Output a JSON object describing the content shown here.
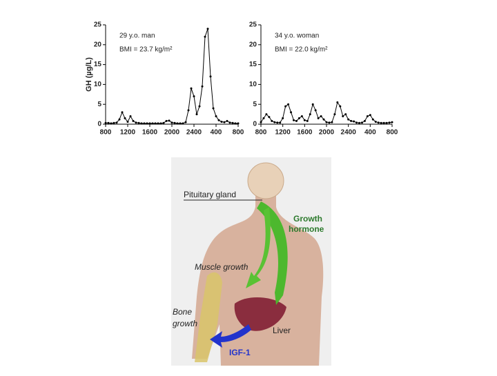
{
  "chart_data": [
    {
      "type": "line",
      "annotations": [
        "29 y.o. man",
        "BMI = 23.7 kg/m²"
      ],
      "y_label": "GH (µg/L)",
      "x": [
        0,
        0.5,
        1,
        1.5,
        2,
        2.5,
        3,
        3.5,
        4,
        4.5,
        5,
        5.5,
        6,
        6.5,
        7,
        7.5,
        8,
        8.5,
        9,
        9.5,
        10,
        10.5,
        11,
        11.5,
        12,
        12.5,
        13,
        13.5,
        14,
        14.5,
        15,
        15.5,
        16,
        16.5,
        17,
        17.5,
        18,
        18.5,
        19,
        19.5,
        20,
        20.5,
        21,
        21.5,
        22,
        22.5,
        23,
        23.5,
        24
      ],
      "values": [
        0.3,
        0.3,
        0.2,
        0.3,
        0.4,
        1.2,
        3.0,
        1.5,
        0.6,
        2.0,
        0.8,
        0.4,
        0.3,
        0.2,
        0.2,
        0.2,
        0.2,
        0.2,
        0.2,
        0.2,
        0.2,
        0.3,
        0.8,
        0.9,
        0.4,
        0.3,
        0.2,
        0.2,
        0.2,
        0.5,
        3.5,
        9.0,
        7.0,
        2.5,
        4.5,
        9.5,
        22.0,
        24.0,
        12.0,
        4.0,
        2.0,
        1.0,
        0.6,
        0.5,
        0.8,
        0.4,
        0.3,
        0.2,
        0.2
      ],
      "color": "#000000",
      "xlim": [
        0,
        24
      ],
      "xticks": [
        {
          "value": 0,
          "label": "800"
        },
        {
          "value": 4,
          "label": "1200"
        },
        {
          "value": 8,
          "label": "1600"
        },
        {
          "value": 12,
          "label": "2000"
        },
        {
          "value": 16,
          "label": "2400"
        },
        {
          "value": 20,
          "label": "400"
        },
        {
          "value": 24,
          "label": "800"
        }
      ],
      "ylim": [
        0,
        25
      ],
      "yticks": [
        0,
        5,
        10,
        15,
        20,
        25
      ]
    },
    {
      "type": "line",
      "annotations": [
        "34 y.o. woman",
        "BMI = 22.0 kg/m²"
      ],
      "x": [
        0,
        0.5,
        1,
        1.5,
        2,
        2.5,
        3,
        3.5,
        4,
        4.5,
        5,
        5.5,
        6,
        6.5,
        7,
        7.5,
        8,
        8.5,
        9,
        9.5,
        10,
        10.5,
        11,
        11.5,
        12,
        12.5,
        13,
        13.5,
        14,
        14.5,
        15,
        15.5,
        16,
        16.5,
        17,
        17.5,
        18,
        18.5,
        19,
        19.5,
        20,
        20.5,
        21,
        21.5,
        22,
        22.5,
        23,
        23.5,
        24
      ],
      "values": [
        0.5,
        1.5,
        2.5,
        1.8,
        0.8,
        0.5,
        0.4,
        0.4,
        1.5,
        4.5,
        5.0,
        3.0,
        1.0,
        0.8,
        1.5,
        2.0,
        1.0,
        0.8,
        2.5,
        5.0,
        3.5,
        1.5,
        2.0,
        1.2,
        0.5,
        0.4,
        0.5,
        2.5,
        5.5,
        4.5,
        2.0,
        2.5,
        1.2,
        0.8,
        0.7,
        0.4,
        0.3,
        0.4,
        0.8,
        2.0,
        2.3,
        1.2,
        0.6,
        0.4,
        0.3,
        0.3,
        0.3,
        0.4,
        0.5
      ],
      "color": "#000000",
      "xlim": [
        0,
        24
      ],
      "xticks": [
        {
          "value": 0,
          "label": "800"
        },
        {
          "value": 4,
          "label": "1200"
        },
        {
          "value": 8,
          "label": "1600"
        },
        {
          "value": 12,
          "label": "2000"
        },
        {
          "value": 16,
          "label": "2400"
        },
        {
          "value": 20,
          "label": "400"
        },
        {
          "value": 24,
          "label": "800"
        }
      ],
      "ylim": [
        0,
        25
      ],
      "yticks": [
        0,
        5,
        10,
        15,
        20,
        25
      ]
    }
  ],
  "illustration": {
    "labels": {
      "pituitary": "Pituitary gland",
      "growth_hormone": [
        "Growth",
        "hormone"
      ],
      "muscle": "Muscle growth",
      "bone": [
        "Bone",
        "growth"
      ],
      "liver": "Liver",
      "igf": "IGF-1"
    }
  }
}
